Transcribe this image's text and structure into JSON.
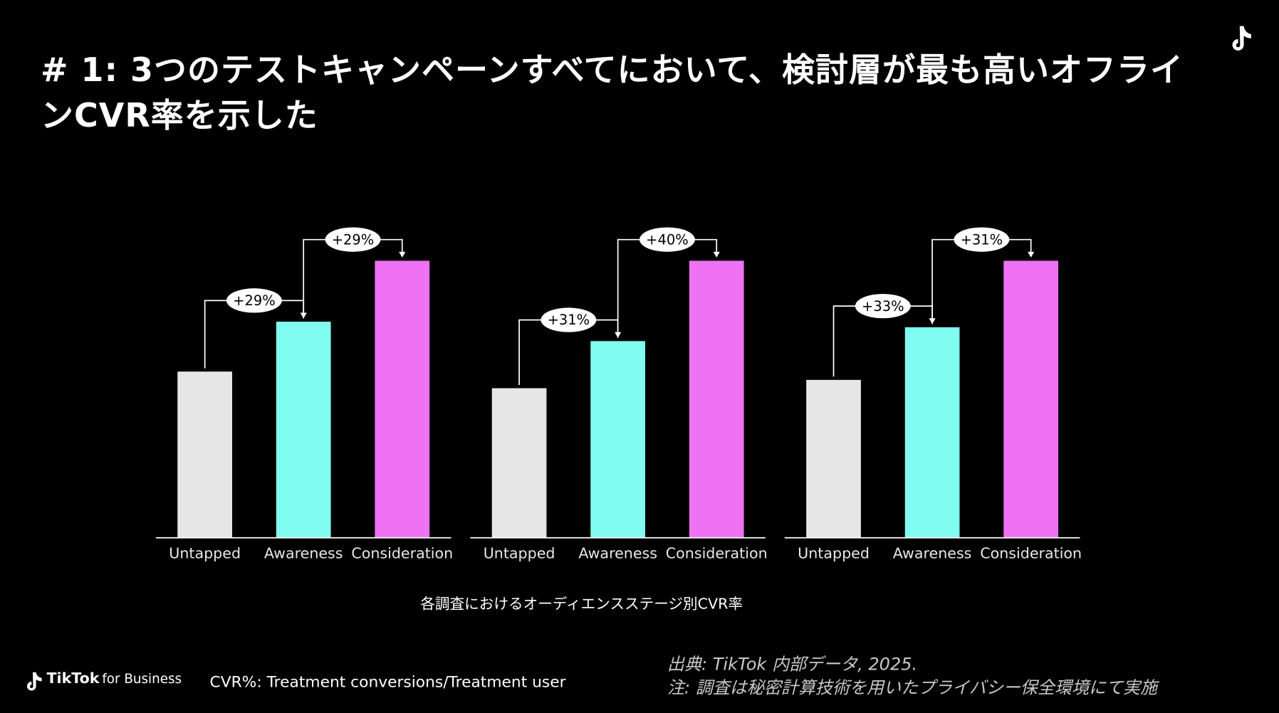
{
  "header": {
    "title": "# 1: 3つのテストキャンペーンすべてにおいて、検討層が最も高いオフラインCVR率を示した"
  },
  "chart_data": [
    {
      "type": "bar",
      "categories": [
        "Untapped",
        "Awareness",
        "Consideration"
      ],
      "values": [
        60,
        78,
        100
      ],
      "colors": [
        "#e6e6e6",
        "#80fdf0",
        "#ee72f3"
      ],
      "ylim": [
        0,
        100
      ],
      "changes": [
        29,
        29
      ],
      "change_labels": [
        "+29%",
        "+29%"
      ]
    },
    {
      "type": "bar",
      "categories": [
        "Untapped",
        "Awareness",
        "Consideration"
      ],
      "values": [
        54,
        71,
        100
      ],
      "colors": [
        "#e6e6e6",
        "#80fdf0",
        "#ee72f3"
      ],
      "ylim": [
        0,
        100
      ],
      "changes": [
        31,
        40
      ],
      "change_labels": [
        "+31%",
        "+40%"
      ]
    },
    {
      "type": "bar",
      "categories": [
        "Untapped",
        "Awareness",
        "Consideration"
      ],
      "values": [
        57,
        76,
        100
      ],
      "colors": [
        "#e6e6e6",
        "#80fdf0",
        "#ee72f3"
      ],
      "ylim": [
        0,
        100
      ],
      "changes": [
        33,
        31
      ],
      "change_labels": [
        "+33%",
        "+31%"
      ]
    }
  ],
  "caption": "各調査におけるオーディエンスステージ別CVR率",
  "footer": {
    "brand": "TikTok",
    "brand_suffix": "for Business",
    "note": "CVR%: Treatment  conversions/Treatment user",
    "source": "出典: TikTok 内部データ, 2025.",
    "disclaimer": "注: 調査は秘密計算技術を用いたプライバシー保全環境にて実施"
  }
}
